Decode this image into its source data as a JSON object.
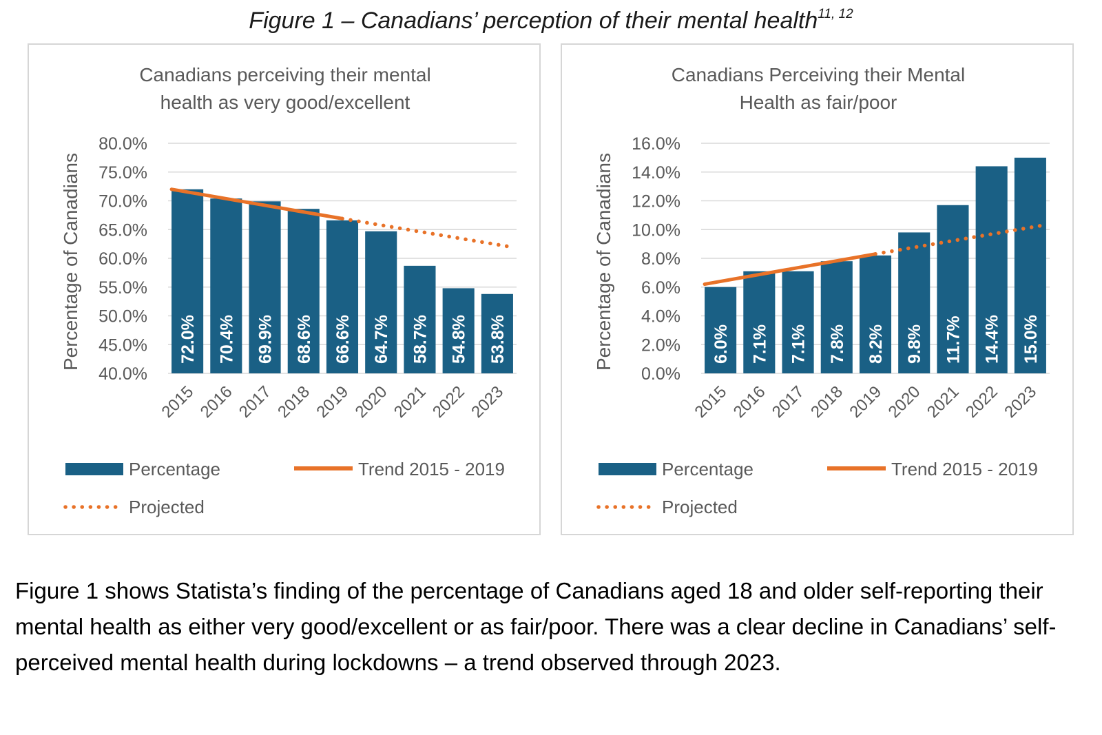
{
  "figure": {
    "caption": "Figure 1 – Canadians’ perception of their mental health",
    "caption_sup": "11, 12"
  },
  "paragraph": "Figure 1 shows Statista’s finding of the percentage of Canadians aged 18 and older self-reporting their mental health as either very good/excellent or as fair/poor. There was a clear decline in Canadians’ self-perceived mental health during lockdowns – a trend observed through 2023.",
  "colors": {
    "bar": "#1a6085",
    "trend": "#e87228",
    "grid": "#d9d9d9",
    "text": "#595959"
  },
  "chart_data": [
    {
      "type": "bar",
      "title_lines": [
        "Canadians perceiving their mental",
        "health as very good/excellent"
      ],
      "ylabel": "Percentage of Canadians",
      "xlabel": "",
      "categories": [
        "2015",
        "2016",
        "2017",
        "2018",
        "2019",
        "2020",
        "2021",
        "2022",
        "2023"
      ],
      "ylim": [
        40,
        80
      ],
      "yticks": [
        "40.0%",
        "45.0%",
        "50.0%",
        "55.0%",
        "60.0%",
        "65.0%",
        "70.0%",
        "75.0%",
        "80.0%"
      ],
      "grid": true,
      "legend_position": "bottom",
      "series": [
        {
          "name": "Percentage",
          "kind": "bar",
          "values": [
            72.0,
            70.4,
            69.9,
            68.6,
            66.6,
            64.7,
            58.7,
            54.8,
            53.8
          ],
          "labels": [
            "72.0%",
            "70.4%",
            "69.9%",
            "68.6%",
            "66.6%",
            "64.7%",
            "58.7%",
            "54.8%",
            "53.8%"
          ]
        },
        {
          "name": "Trend 2015 - 2019",
          "kind": "line",
          "x": [
            "2015",
            "2019"
          ],
          "values": [
            72.0,
            66.9
          ]
        },
        {
          "name": "Projected",
          "kind": "dotted",
          "x": [
            "2019",
            "2023"
          ],
          "values": [
            66.9,
            62.0
          ]
        }
      ]
    },
    {
      "type": "bar",
      "title_lines": [
        "Canadians Perceiving their Mental",
        "Health as fair/poor"
      ],
      "ylabel": "Percentage of Canadians",
      "xlabel": "",
      "categories": [
        "2015",
        "2016",
        "2017",
        "2018",
        "2019",
        "2020",
        "2021",
        "2022",
        "2023"
      ],
      "ylim": [
        0,
        16
      ],
      "yticks": [
        "0.0%",
        "2.0%",
        "4.0%",
        "6.0%",
        "8.0%",
        "10.0%",
        "12.0%",
        "14.0%",
        "16.0%"
      ],
      "grid": true,
      "legend_position": "bottom",
      "series": [
        {
          "name": "Percentage",
          "kind": "bar",
          "values": [
            6.0,
            7.1,
            7.1,
            7.8,
            8.2,
            9.8,
            11.7,
            14.4,
            15.0
          ],
          "labels": [
            "6.0%",
            "7.1%",
            "7.1%",
            "7.8%",
            "8.2%",
            "9.8%",
            "11.7%",
            "14.4%",
            "15.0%"
          ]
        },
        {
          "name": "Trend 2015 - 2019",
          "kind": "line",
          "x": [
            "2015",
            "2019"
          ],
          "values": [
            6.2,
            8.3
          ]
        },
        {
          "name": "Projected",
          "kind": "dotted",
          "x": [
            "2019",
            "2023"
          ],
          "values": [
            8.3,
            10.3
          ]
        }
      ]
    }
  ]
}
